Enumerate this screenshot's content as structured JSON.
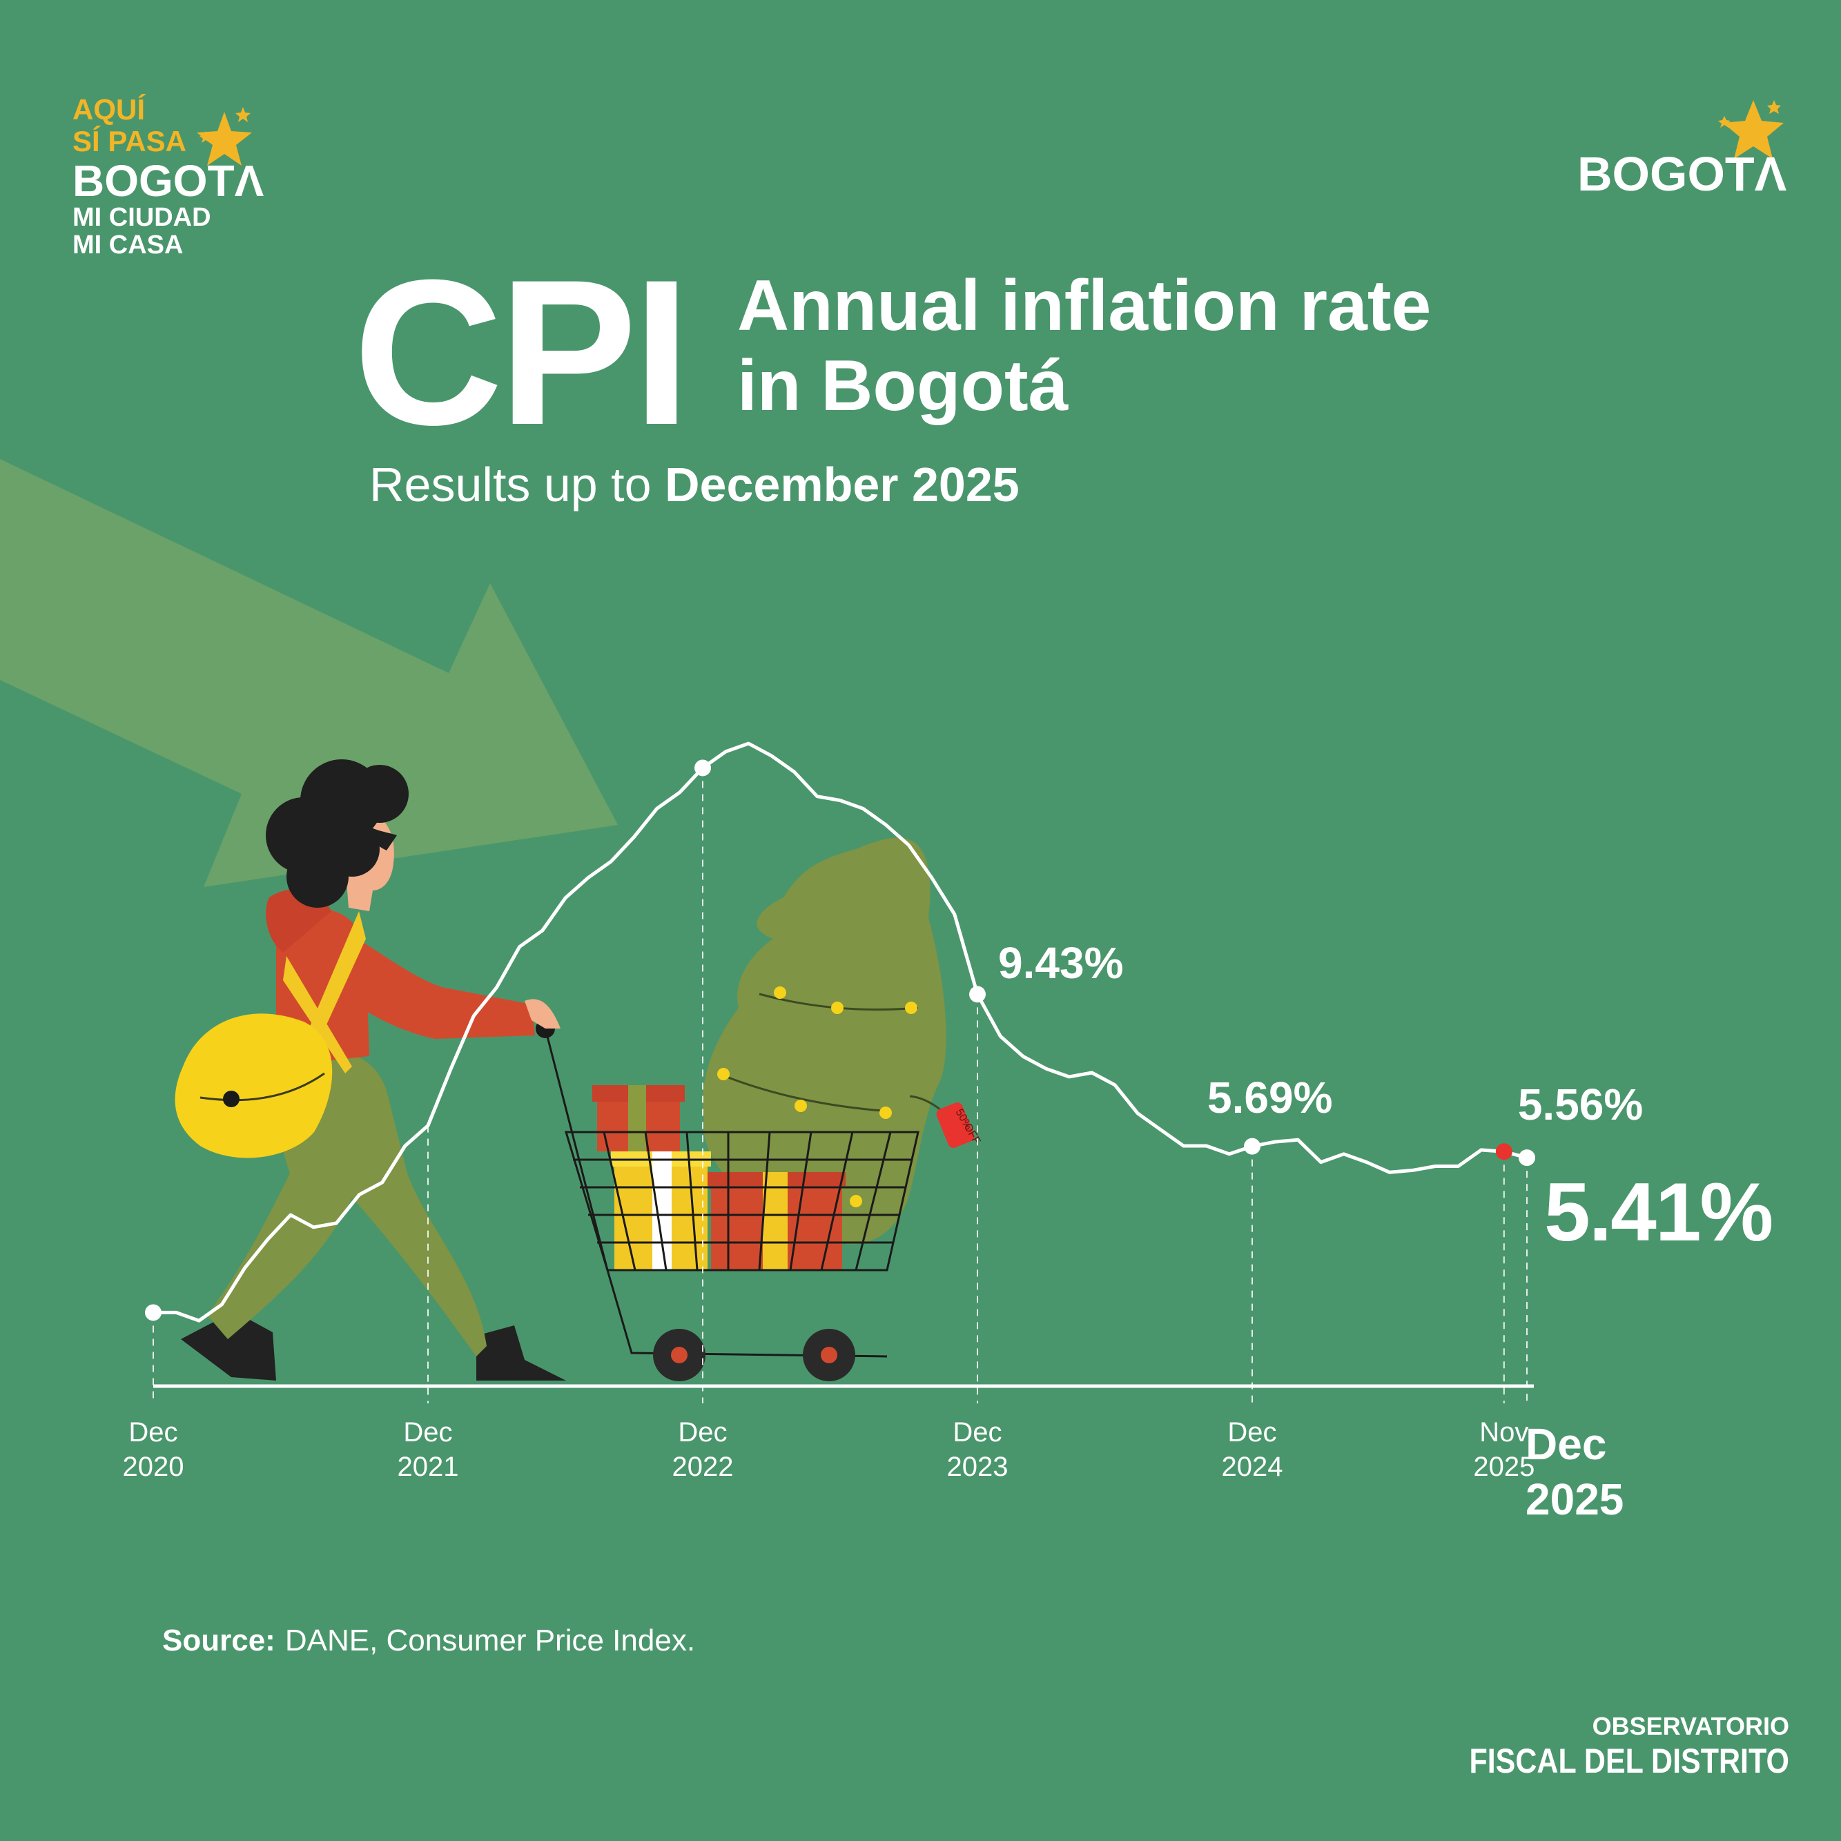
{
  "logo_left": {
    "line1": "AQUÍ",
    "line2": "SÍ PASA",
    "line3": "BOGOTΛ",
    "line4": "MI CIUDAD",
    "line5": "MI CASA"
  },
  "logo_right": {
    "text": "BOGOTΛ"
  },
  "title": {
    "big": "CPI",
    "line1": "Annual inflation rate",
    "line2": "in Bogotá"
  },
  "subtitle": {
    "prefix": "Results up to ",
    "highlight": "December 2025"
  },
  "tag_text": {
    "l1": "50%",
    "l2": "OFF"
  },
  "chart_data": {
    "type": "line",
    "title": "Annual inflation rate in Bogotá",
    "xlabel": "",
    "ylabel": "",
    "grid": false,
    "legend": "none",
    "y_unit": "%",
    "xlim": [
      "2020-12",
      "2025-12"
    ],
    "ylim": [
      1.2,
      15.5
    ],
    "x": [
      "2020-12",
      "2021-01",
      "2021-02",
      "2021-03",
      "2021-04",
      "2021-05",
      "2021-06",
      "2021-07",
      "2021-08",
      "2021-09",
      "2021-10",
      "2021-11",
      "2021-12",
      "2022-01",
      "2022-02",
      "2022-03",
      "2022-04",
      "2022-05",
      "2022-06",
      "2022-07",
      "2022-08",
      "2022-09",
      "2022-10",
      "2022-11",
      "2022-12",
      "2023-01",
      "2023-02",
      "2023-03",
      "2023-04",
      "2023-05",
      "2023-06",
      "2023-07",
      "2023-08",
      "2023-09",
      "2023-10",
      "2023-11",
      "2023-12",
      "2024-01",
      "2024-02",
      "2024-03",
      "2024-04",
      "2024-05",
      "2024-06",
      "2024-07",
      "2024-08",
      "2024-09",
      "2024-10",
      "2024-11",
      "2024-12",
      "2025-01",
      "2025-02",
      "2025-03",
      "2025-04",
      "2025-05",
      "2025-06",
      "2025-07",
      "2025-08",
      "2025-09",
      "2025-10",
      "2025-11",
      "2025-12"
    ],
    "values": [
      1.6,
      1.6,
      1.4,
      1.8,
      2.7,
      3.4,
      4.0,
      3.7,
      3.8,
      4.5,
      4.8,
      5.7,
      6.2,
      7.6,
      8.9,
      9.6,
      10.6,
      11.0,
      11.8,
      12.3,
      12.7,
      13.3,
      14.0,
      14.4,
      15.0,
      15.4,
      15.6,
      15.3,
      14.9,
      14.3,
      14.2,
      14.0,
      13.6,
      13.1,
      12.3,
      11.4,
      9.43,
      8.4,
      7.9,
      7.6,
      7.4,
      7.5,
      7.2,
      6.5,
      6.1,
      5.7,
      5.7,
      5.5,
      5.69,
      5.8,
      5.85,
      5.3,
      5.5,
      5.3,
      5.05,
      5.1,
      5.2,
      5.2,
      5.6,
      5.56,
      5.41
    ],
    "markers": [
      {
        "x": "2020-12",
        "value": 1.6,
        "color": "#ffffff"
      },
      {
        "x": "2022-12",
        "value": 15.0,
        "color": "#ffffff"
      },
      {
        "x": "2023-12",
        "value": 9.43,
        "color": "#ffffff"
      },
      {
        "x": "2024-12",
        "value": 5.69,
        "color": "#ffffff"
      },
      {
        "x": "2025-11",
        "value": 5.56,
        "color": "#e8332f"
      },
      {
        "x": "2025-12",
        "value": 5.41,
        "color": "#ffffff"
      }
    ],
    "labels": [
      {
        "x": "2023-12",
        "value": 9.43,
        "text": "9.43%"
      },
      {
        "x": "2024-12",
        "value": 5.69,
        "text": "5.69%"
      },
      {
        "x": "2025-11",
        "value": 5.56,
        "text": "5.56%"
      },
      {
        "x": "2025-12",
        "value": 5.41,
        "text": "5.41%"
      }
    ],
    "ticks": [
      {
        "x": "2020-12",
        "line1": "Dec",
        "line2": "2020"
      },
      {
        "x": "2021-12",
        "line1": "Dec",
        "line2": "2021"
      },
      {
        "x": "2022-12",
        "line1": "Dec",
        "line2": "2022"
      },
      {
        "x": "2023-12",
        "line1": "Dec",
        "line2": "2023"
      },
      {
        "x": "2024-12",
        "line1": "Dec",
        "line2": "2024"
      },
      {
        "x": "2025-11",
        "line1": "Nov",
        "line2": "2025"
      }
    ],
    "final_tick": {
      "x": "2025-12",
      "line1": "Dec",
      "line2": "2025"
    }
  },
  "source": {
    "label": "Source:",
    "text": "DANE, Consumer Price Index."
  },
  "footer": {
    "line1": "OBSERVATORIO",
    "line2": "FISCAL DEL DISTRITO"
  },
  "colors": {
    "background": "#4a966c",
    "arrow": "#6aa269",
    "accent_yellow": "#f2b526",
    "marker_red": "#e8332f",
    "line": "#ffffff"
  }
}
